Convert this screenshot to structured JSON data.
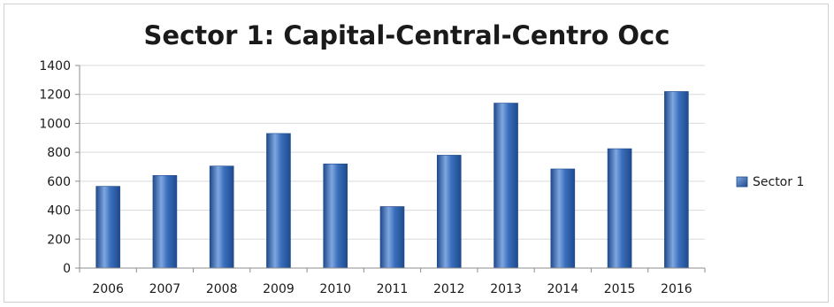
{
  "chart_data": {
    "type": "bar",
    "title": "Sector 1: Capital-Central-Centro Occ",
    "xlabel": "",
    "ylabel": "",
    "categories": [
      "2006",
      "2007",
      "2008",
      "2009",
      "2010",
      "2011",
      "2012",
      "2013",
      "2014",
      "2015",
      "2016"
    ],
    "series": [
      {
        "name": "Sector 1",
        "values": [
          565,
          640,
          705,
          930,
          720,
          425,
          780,
          1140,
          685,
          825,
          1220
        ]
      }
    ],
    "ylim": [
      0,
      1400
    ],
    "yticks": [
      0,
      200,
      400,
      600,
      800,
      1000,
      1200,
      1400
    ],
    "ytick_labels": [
      "0",
      "200",
      "400",
      "600",
      "800",
      "1000",
      "1200",
      "1400"
    ],
    "grid": true,
    "legend": {
      "position": "right",
      "entries": [
        "Sector 1"
      ]
    },
    "colors": {
      "bar": "#3a6fbd",
      "bar_light": "#7fa7e0",
      "bar_dark": "#1f4a8c",
      "grid": "#d9d9d9",
      "axis": "#8c8c8c"
    }
  }
}
